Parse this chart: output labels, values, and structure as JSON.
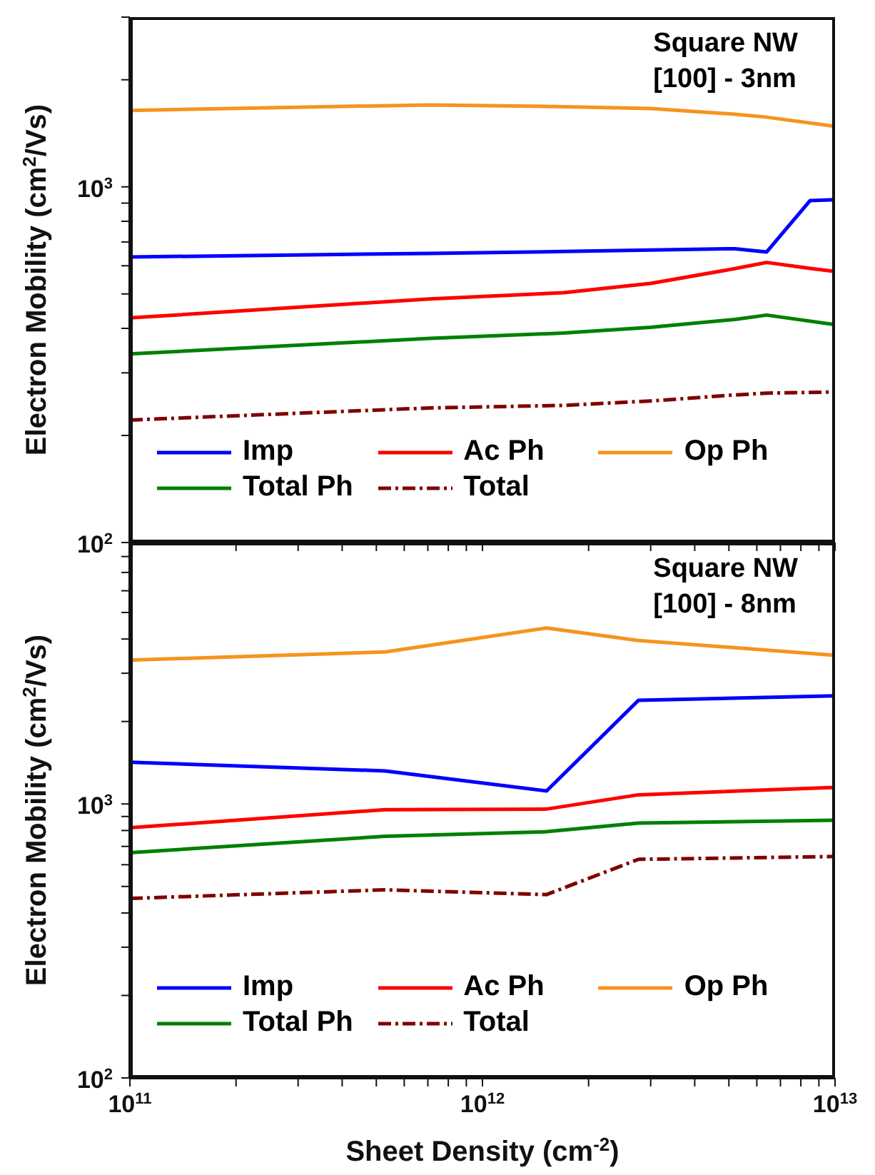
{
  "chart_data": [
    {
      "type": "line",
      "ylabel": "Electron Mobility (cm$^{2}$/Vs)",
      "annotations": [
        "Square NW",
        "[100] - 3nm"
      ],
      "log": "xy",
      "legend": "bottom",
      "tick_labels": "y",
      "xlim": [
        100000000000.0,
        10000000000000.0
      ],
      "xticks": [
        {
          "value": 100000000000.0,
          "label": null
        },
        {
          "value": 200000000000.0,
          "label": null
        },
        {
          "value": 300000000000.0,
          "label": null
        },
        {
          "value": 400000000000.0,
          "label": null
        },
        {
          "value": 500000000000.0,
          "label": null
        },
        {
          "value": 600000000000.0,
          "label": null
        },
        {
          "value": 700000000000.0,
          "label": null
        },
        {
          "value": 800000000000.0,
          "label": null
        },
        {
          "value": 900000000000.0,
          "label": null
        },
        {
          "value": 1000000000000.0,
          "label": null
        },
        {
          "value": 2000000000000.0,
          "label": null
        },
        {
          "value": 3000000000000.0,
          "label": null
        },
        {
          "value": 4000000000000.0,
          "label": null
        },
        {
          "value": 5000000000000.0,
          "label": null
        },
        {
          "value": 6000000000000.0,
          "label": null
        },
        {
          "value": 7000000000000.0,
          "label": null
        },
        {
          "value": 8000000000000.0,
          "label": null
        },
        {
          "value": 9000000000000.0,
          "label": null
        },
        {
          "value": 10000000000000.0,
          "label": null
        }
      ],
      "ylim": [
        100,
        3000
      ],
      "yticks": [
        {
          "value": 100,
          "label": "10$^{2}$"
        },
        {
          "value": 200,
          "label": null
        },
        {
          "value": 300,
          "label": null
        },
        {
          "value": 400,
          "label": null
        },
        {
          "value": 500,
          "label": null
        },
        {
          "value": 600,
          "label": null
        },
        {
          "value": 700,
          "label": null
        },
        {
          "value": 800,
          "label": null
        },
        {
          "value": 900,
          "label": null
        },
        {
          "value": 1000,
          "label": "10$^{3}$"
        },
        {
          "value": 2000,
          "label": null
        },
        {
          "value": 3000,
          "label": null
        }
      ],
      "series": [
        {
          "name": "Imp",
          "color": "#0000ff",
          "line_style": "solid",
          "x": [
            100000000000.0,
            710000000000.0,
            1700000000000.0,
            5200000000000.0,
            6400000000000.0,
            8500000000000.0,
            10000000000000.0
          ],
          "values": [
            635,
            650,
            658,
            670,
            656,
            915,
            920
          ]
        },
        {
          "name": "Ac Ph",
          "color": "#ff0000",
          "line_style": "solid",
          "x": [
            100000000000.0,
            710000000000.0,
            1700000000000.0,
            3000000000000.0,
            5200000000000.0,
            6400000000000.0,
            8500000000000.0,
            10000000000000.0
          ],
          "values": [
            428,
            484,
            504,
            535,
            589,
            613,
            590,
            578
          ]
        },
        {
          "name": "Op Ph",
          "color": "#f7931e",
          "line_style": "solid",
          "x": [
            100000000000.0,
            710000000000.0,
            1700000000000.0,
            3000000000000.0,
            5200000000000.0,
            6400000000000.0,
            10000000000000.0
          ],
          "values": [
            1640,
            1700,
            1680,
            1660,
            1600,
            1570,
            1480
          ]
        },
        {
          "name": "Total Ph",
          "color": "#008000",
          "line_style": "solid",
          "x": [
            100000000000.0,
            710000000000.0,
            1700000000000.0,
            3000000000000.0,
            5200000000000.0,
            6400000000000.0,
            10000000000000.0
          ],
          "values": [
            339,
            375,
            388,
            403,
            424,
            436,
            410
          ]
        },
        {
          "name": "Total",
          "color": "#800000",
          "line_style": "dashdot",
          "x": [
            100000000000.0,
            710000000000.0,
            1700000000000.0,
            3000000000000.0,
            5200000000000.0,
            6400000000000.0,
            10000000000000.0
          ],
          "values": [
            221,
            239,
            243,
            250,
            260,
            263,
            265
          ]
        }
      ]
    },
    {
      "type": "line",
      "xlabel": "Sheet Density (cm$^{-2}$)",
      "ylabel": "Electron Mobility (cm$^{2}$/Vs)",
      "annotations": [
        "Square NW",
        "[100] - 8nm"
      ],
      "log": "xy",
      "legend": "bottom",
      "xlim": [
        100000000000.0,
        10000000000000.0
      ],
      "xticks": [
        {
          "value": 100000000000.0,
          "label": "10$^{11}$"
        },
        {
          "value": 200000000000.0,
          "label": null
        },
        {
          "value": 300000000000.0,
          "label": null
        },
        {
          "value": 400000000000.0,
          "label": null
        },
        {
          "value": 500000000000.0,
          "label": null
        },
        {
          "value": 600000000000.0,
          "label": null
        },
        {
          "value": 700000000000.0,
          "label": null
        },
        {
          "value": 800000000000.0,
          "label": null
        },
        {
          "value": 900000000000.0,
          "label": null
        },
        {
          "value": 1000000000000.0,
          "label": "10$^{12}$"
        },
        {
          "value": 2000000000000.0,
          "label": null
        },
        {
          "value": 3000000000000.0,
          "label": null
        },
        {
          "value": 4000000000000.0,
          "label": null
        },
        {
          "value": 5000000000000.0,
          "label": null
        },
        {
          "value": 6000000000000.0,
          "label": null
        },
        {
          "value": 7000000000000.0,
          "label": null
        },
        {
          "value": 8000000000000.0,
          "label": null
        },
        {
          "value": 9000000000000.0,
          "label": null
        },
        {
          "value": 10000000000000.0,
          "label": "10$^{13}$"
        }
      ],
      "ylim": [
        100,
        9000
      ],
      "yticks": [
        {
          "value": 100,
          "label": "10$^{2}$"
        },
        {
          "value": 200,
          "label": null
        },
        {
          "value": 300,
          "label": null
        },
        {
          "value": 400,
          "label": null
        },
        {
          "value": 500,
          "label": null
        },
        {
          "value": 600,
          "label": null
        },
        {
          "value": 700,
          "label": null
        },
        {
          "value": 800,
          "label": null
        },
        {
          "value": 900,
          "label": null
        },
        {
          "value": 1000,
          "label": "10$^{3}$"
        },
        {
          "value": 2000,
          "label": null
        },
        {
          "value": 3000,
          "label": null
        },
        {
          "value": 4000,
          "label": null
        },
        {
          "value": 5000,
          "label": null
        },
        {
          "value": 6000,
          "label": null
        },
        {
          "value": 7000,
          "label": null
        },
        {
          "value": 8000,
          "label": null
        },
        {
          "value": 9000,
          "label": null
        }
      ],
      "series": [
        {
          "name": "Imp",
          "color": "#0000ff",
          "line_style": "solid",
          "x": [
            100000000000.0,
            530000000000.0,
            1520000000000.0,
            2770000000000.0,
            10000000000000.0
          ],
          "values": [
            1420,
            1320,
            1115,
            2390,
            2480
          ]
        },
        {
          "name": "Ac Ph",
          "color": "#ff0000",
          "line_style": "solid",
          "x": [
            100000000000.0,
            530000000000.0,
            1520000000000.0,
            2770000000000.0,
            10000000000000.0
          ],
          "values": [
            819,
            953,
            958,
            1080,
            1150
          ]
        },
        {
          "name": "Op Ph",
          "color": "#f7931e",
          "line_style": "solid",
          "x": [
            100000000000.0,
            530000000000.0,
            1520000000000.0,
            2770000000000.0,
            10000000000000.0
          ],
          "values": [
            3350,
            3590,
            4390,
            3950,
            3490
          ]
        },
        {
          "name": "Total Ph",
          "color": "#008000",
          "line_style": "solid",
          "x": [
            100000000000.0,
            530000000000.0,
            1520000000000.0,
            2770000000000.0,
            10000000000000.0
          ],
          "values": [
            664,
            762,
            792,
            851,
            872
          ]
        },
        {
          "name": "Total",
          "color": "#800000",
          "line_style": "dashdot",
          "x": [
            100000000000.0,
            530000000000.0,
            1520000000000.0,
            2770000000000.0,
            10000000000000.0
          ],
          "values": [
            452,
            486,
            467,
            628,
            643
          ]
        }
      ]
    }
  ]
}
